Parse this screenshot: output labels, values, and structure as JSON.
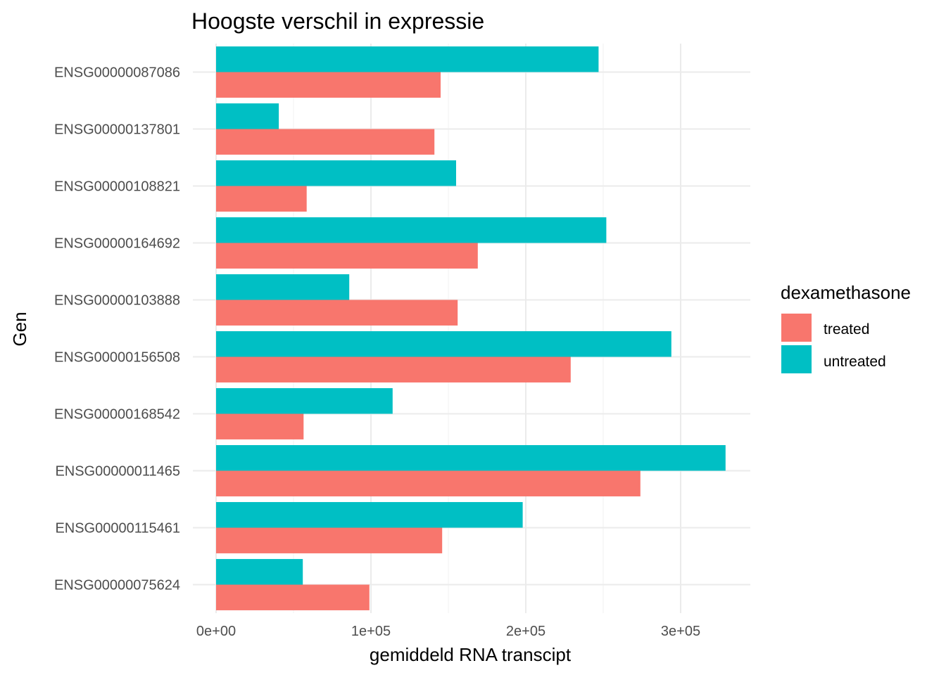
{
  "chart_data": {
    "type": "bar",
    "orientation": "horizontal",
    "title": "Hoogste verschil in expressie",
    "xlabel": "gemiddeld RNA transcipt",
    "ylabel": "Gen",
    "xlim": [
      -15000,
      345000
    ],
    "x_ticks": [
      0,
      100000,
      200000,
      300000
    ],
    "x_tick_labels": [
      "0e+00",
      "1e+05",
      "2e+05",
      "3e+05"
    ],
    "categories": [
      "ENSG00000087086",
      "ENSG00000137801",
      "ENSG00000108821",
      "ENSG00000164692",
      "ENSG00000103888",
      "ENSG00000156508",
      "ENSG00000168542",
      "ENSG00000011465",
      "ENSG00000115461",
      "ENSG00000075624"
    ],
    "series": [
      {
        "name": "treated",
        "color": "#F8766D",
        "values": [
          145000,
          141000,
          58500,
          169000,
          156000,
          229000,
          56500,
          274000,
          146000,
          99000
        ]
      },
      {
        "name": "untreated",
        "color": "#00BFC4",
        "values": [
          247000,
          40500,
          155000,
          252000,
          86000,
          294000,
          114000,
          329000,
          198000,
          56000
        ]
      }
    ],
    "legend": {
      "title": "dexamethasone",
      "position": "right"
    },
    "grid": true
  }
}
